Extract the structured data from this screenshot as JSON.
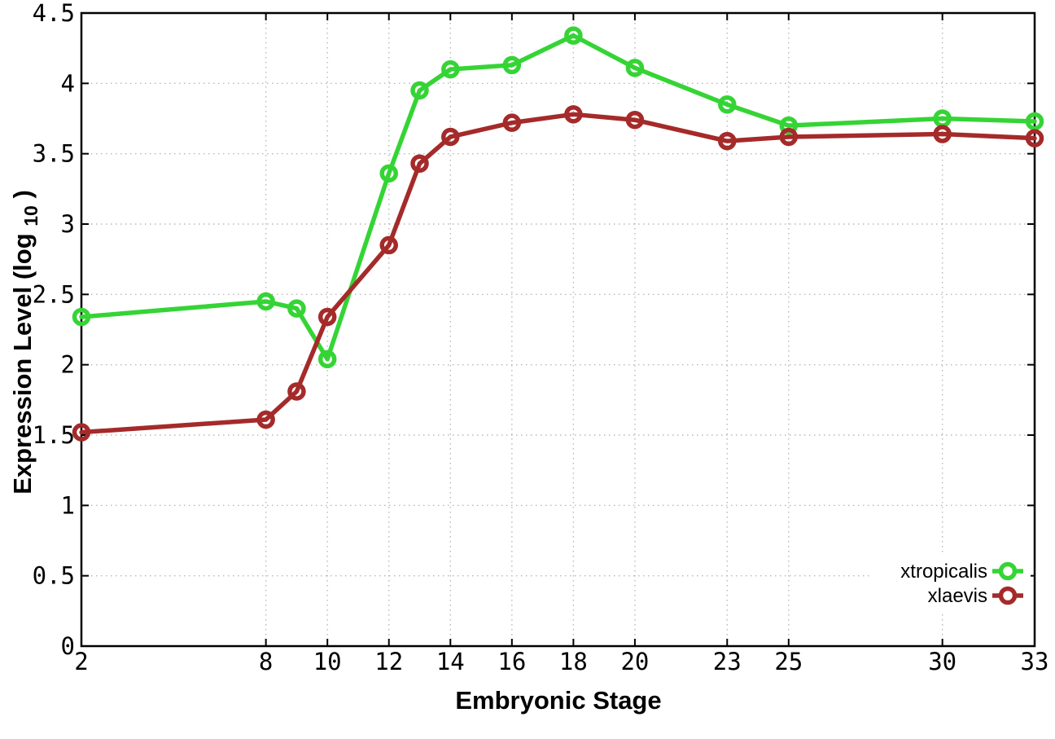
{
  "figure": {
    "background": "#ffffff",
    "border_color": "#000000",
    "grid_color": "#b8b8b8"
  },
  "chart_data": {
    "type": "line",
    "title": "",
    "xlabel": "Embryonic Stage",
    "ylabel": "Expression Level (log10)",
    "ylabel_parts": {
      "pre": "Expression Level (log",
      "sub": "10",
      "post": ")"
    },
    "x": [
      2,
      8,
      9,
      10,
      12,
      13,
      14,
      16,
      18,
      20,
      23,
      25,
      30,
      33
    ],
    "series": [
      {
        "name": "xtropicalis",
        "color": "#35d435",
        "marker": "open-circle",
        "values": [
          2.34,
          2.45,
          2.4,
          2.04,
          3.36,
          3.95,
          4.1,
          4.13,
          4.34,
          4.11,
          3.85,
          3.7,
          3.75,
          3.73
        ]
      },
      {
        "name": "xlaevis",
        "color": "#a52a2a",
        "marker": "open-circle",
        "values": [
          1.52,
          1.61,
          1.81,
          2.34,
          2.85,
          3.43,
          3.62,
          3.72,
          3.78,
          3.74,
          3.59,
          3.62,
          3.64,
          3.61
        ]
      }
    ],
    "xlim": [
      2,
      33
    ],
    "ylim": [
      0,
      4.5
    ],
    "x_ticks": {
      "values": [
        2,
        8,
        10,
        12,
        14,
        16,
        18,
        20,
        23,
        25,
        30,
        33
      ],
      "labels": [
        "2",
        "8",
        "10",
        "12",
        "14",
        "16",
        "18",
        "20",
        "23",
        "25",
        "30",
        "33"
      ]
    },
    "y_ticks": {
      "values": [
        0,
        0.5,
        1,
        1.5,
        2,
        2.5,
        3,
        3.5,
        4,
        4.5
      ],
      "labels": [
        "0",
        "0.5",
        "1",
        "1.5",
        "2",
        "2.5",
        "3",
        "3.5",
        "4",
        "4.5"
      ]
    },
    "grid": true,
    "legend_position": "bottom-right"
  }
}
